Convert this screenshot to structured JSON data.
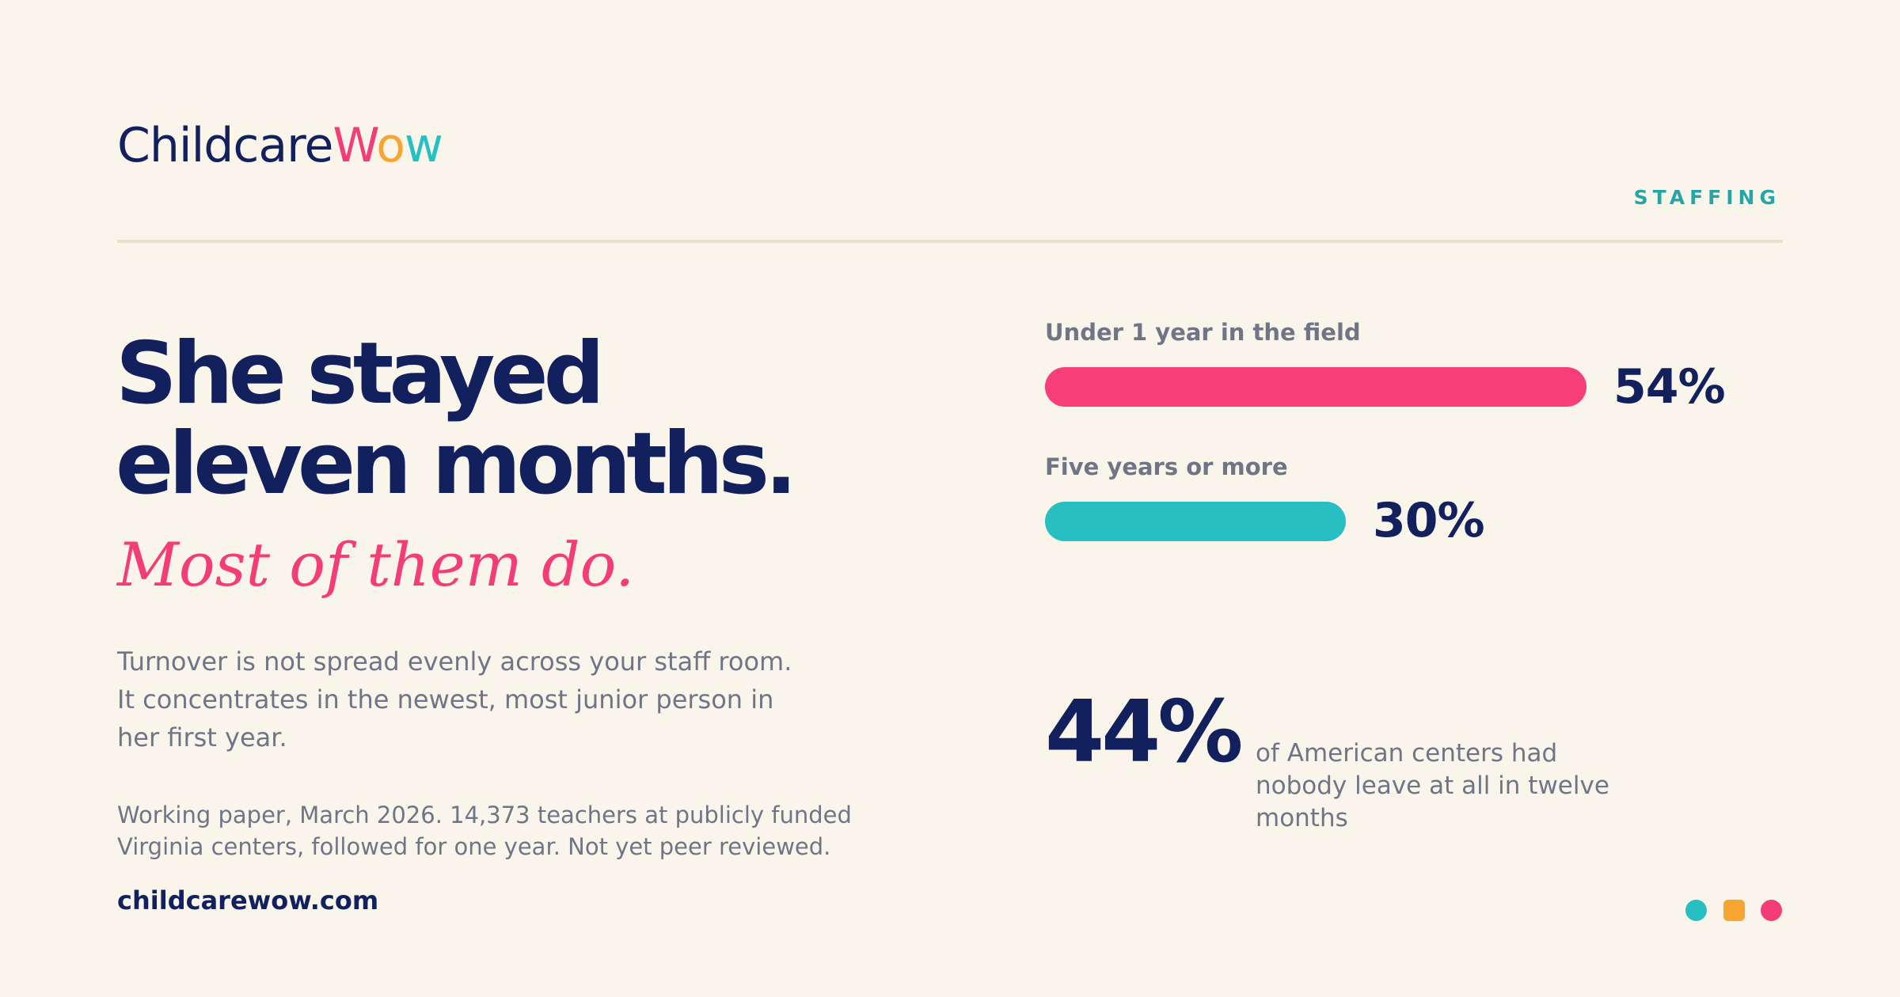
{
  "brand": {
    "logo_parts": [
      "Childcare",
      "W",
      "o",
      "w"
    ],
    "colors": {
      "navy": "#12205e",
      "pink": "#f23d76",
      "orange": "#f7a52e",
      "teal": "#28bfc2"
    }
  },
  "section_label": "STAFFING",
  "headline": [
    "She stayed",
    "eleven months."
  ],
  "subhead": "Most of them do.",
  "body": [
    "Turnover is not spread evenly across your staff room.",
    "It concentrates in the newest, most junior person in",
    "her first year."
  ],
  "footnote": [
    "Working paper, March 2026. 14,373 teachers at publicly funded",
    "Virginia centers, followed for one year. Not yet peer reviewed."
  ],
  "website": "childcarewow.com",
  "bars": [
    {
      "label": "Under 1 year in the field",
      "value": 54,
      "value_text": "54%",
      "color": "#f73e7a"
    },
    {
      "label": "Five years or more",
      "value": 30,
      "value_text": "30%",
      "color": "#28bfc2"
    }
  ],
  "big_stat": {
    "value_text": "44%",
    "caption": [
      "of American centers had",
      "nobody leave at all in twelve",
      "months"
    ]
  },
  "decor_dots": [
    "#28bfc2",
    "#f7a52e",
    "#f23d76"
  ]
}
